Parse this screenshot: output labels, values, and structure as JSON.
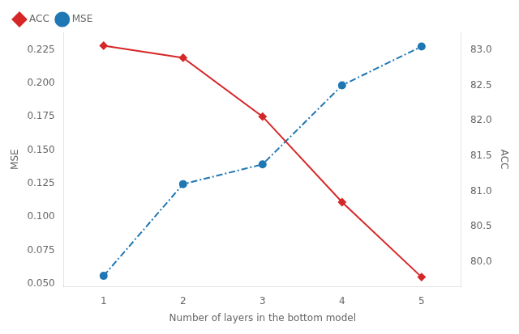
{
  "chart_data": {
    "type": "line",
    "xlabel": "Number of layers in the bottom model",
    "ylabel": "MSE",
    "y2label": "ACC",
    "x": [
      1,
      2,
      3,
      4,
      5
    ],
    "series": [
      {
        "name": "ACC",
        "color": "#d62728",
        "values": [
          0.228,
          0.219,
          0.175,
          0.111,
          0.055
        ],
        "marker": "diamond",
        "line_style": "solid"
      },
      {
        "name": "MSE",
        "color": "#1f77b4",
        "values": [
          79.8,
          81.1,
          81.38,
          82.5,
          83.05
        ],
        "axis": "y2",
        "marker": "circle",
        "line_style": "dashdot"
      }
    ],
    "xlim": [
      0.5,
      5.5
    ],
    "xticks": [
      1,
      2,
      3,
      4,
      5
    ],
    "ylim": [
      0.048,
      0.238
    ],
    "yticks": [
      {
        "value": 0.05,
        "label": "0.050"
      },
      0.075,
      {
        "value": 0.1,
        "label": "0.100"
      },
      0.125,
      {
        "value": 0.15,
        "label": "0.150"
      },
      0.175,
      {
        "value": 0.2,
        "label": "0.200"
      },
      0.225
    ],
    "y2lim": [
      79.65,
      83.25
    ],
    "y2ticks": [
      {
        "value": 80,
        "label": "80.0"
      },
      80.5,
      {
        "value": 81,
        "label": "81.0"
      },
      81.5,
      {
        "value": 82,
        "label": "82.0"
      },
      82.5,
      {
        "value": 83,
        "label": "83.0"
      }
    ],
    "grid": false,
    "legend": "upper left"
  }
}
